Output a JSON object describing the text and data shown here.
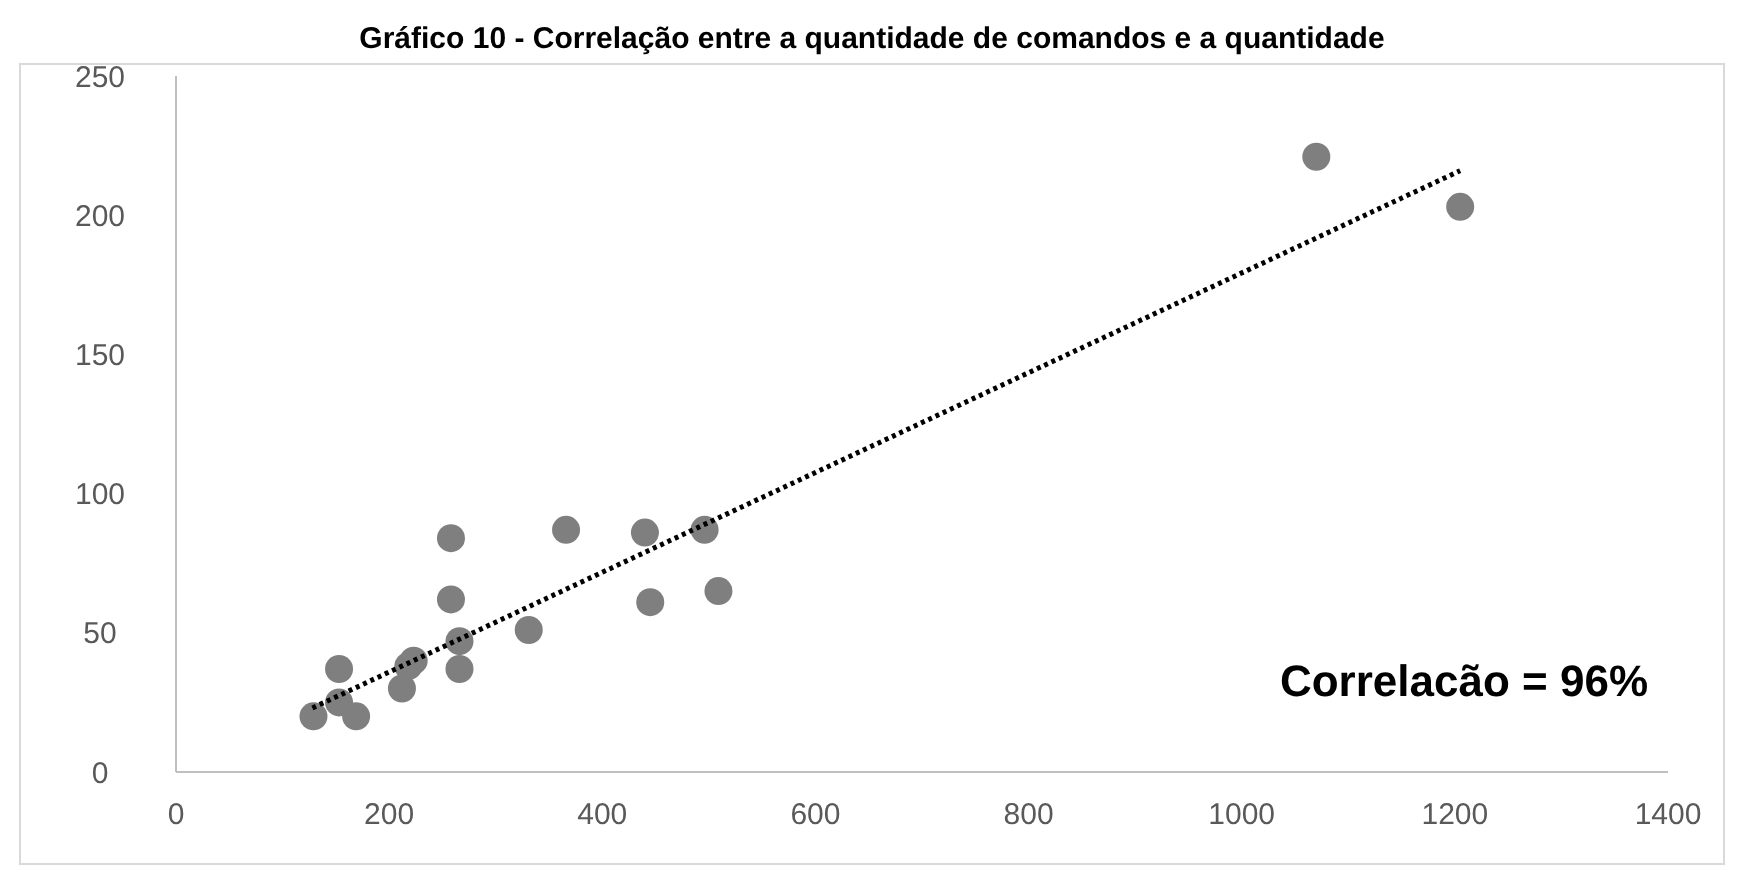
{
  "chart_data": {
    "type": "scatter",
    "title": "Gráfico 10 - Correlação entre a quantidade de comandos e a quantidade",
    "annotations": [
      "Correlacão = 96%"
    ],
    "xlim": [
      0,
      1400
    ],
    "xticks": [
      0,
      200,
      400,
      600,
      800,
      1000,
      1200,
      1400
    ],
    "ylim": [
      0,
      250
    ],
    "yticks": [
      0,
      50,
      100,
      150,
      200,
      250
    ],
    "grid": false,
    "series": [
      {
        "color": "#7f7f7f",
        "marker": "circle",
        "x": [
          129,
          153,
          153,
          169,
          212,
          223,
          218,
          258,
          258,
          266,
          266,
          331,
          366,
          440,
          445,
          496,
          509,
          1070,
          1205
        ],
        "values": [
          20,
          37,
          25,
          20,
          30,
          40,
          38,
          84,
          62,
          47,
          37,
          51,
          87,
          86,
          61,
          87,
          65,
          221,
          203
        ]
      },
      {
        "type": "line",
        "color": "#000000",
        "line_style": "dotted",
        "marker": "none",
        "x": [
          128,
          1205
        ],
        "values": [
          23,
          216
        ]
      }
    ]
  }
}
